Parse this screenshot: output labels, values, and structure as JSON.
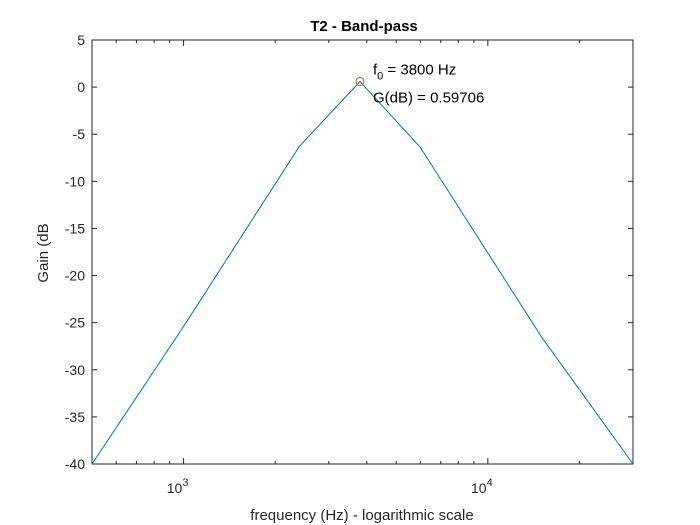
{
  "chart_data": {
    "type": "line",
    "title": "T2 - Band-pass",
    "xlabel": "frequency (Hz) - logarithmic scale",
    "ylabel": "Gain (dB",
    "xscale": "log",
    "xlim": [
      500,
      30000
    ],
    "ylim": [
      -40,
      5
    ],
    "yticks": [
      5,
      0,
      -5,
      -10,
      -15,
      -20,
      -25,
      -30,
      -35,
      -40
    ],
    "ytick_labels": [
      "5",
      "0",
      "-5",
      "-10",
      "-15",
      "-20",
      "-25",
      "-30",
      "-35",
      "-40"
    ],
    "xticks_major": [
      {
        "value": 1000,
        "base": "10",
        "exp": "3"
      },
      {
        "value": 10000,
        "base": "10",
        "exp": "4"
      }
    ],
    "xticks_minor": [
      500,
      600,
      700,
      800,
      900,
      2000,
      3000,
      4000,
      5000,
      6000,
      7000,
      8000,
      9000,
      20000,
      30000
    ],
    "grid": false,
    "series": [
      {
        "name": "Gain",
        "color": "#0072BD",
        "x": [
          500,
          1000,
          2400,
          3800,
          6000,
          15000,
          30000
        ],
        "y": [
          -40,
          -25.4,
          -6.3,
          0.59706,
          -6.4,
          -26.5,
          -40
        ]
      }
    ],
    "marker": {
      "x": 3800,
      "y": 0.59706,
      "color": "#D95319",
      "label_f_prefix": "f",
      "label_f_sub": "0",
      "label_f_rest": " = 3800 Hz",
      "label_g": "G(dB) = 0.59706"
    }
  }
}
